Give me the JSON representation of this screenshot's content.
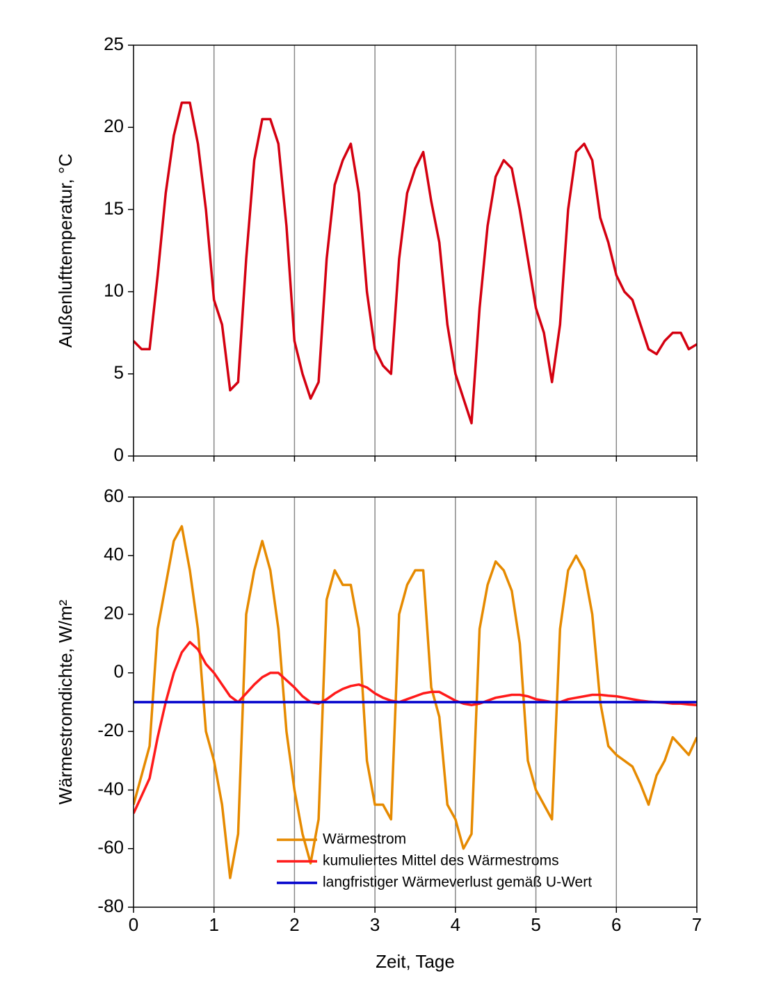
{
  "chart_data": [
    {
      "type": "line",
      "y_label": "Außenlufttemperatur, °C",
      "x": [
        0,
        0.1,
        0.2,
        0.3,
        0.4,
        0.5,
        0.6,
        0.7,
        0.8,
        0.9,
        1,
        1.1,
        1.2,
        1.3,
        1.4,
        1.5,
        1.6,
        1.7,
        1.8,
        1.9,
        2,
        2.1,
        2.2,
        2.3,
        2.4,
        2.5,
        2.6,
        2.7,
        2.8,
        2.9,
        3,
        3.1,
        3.2,
        3.3,
        3.4,
        3.5,
        3.6,
        3.7,
        3.8,
        3.9,
        4,
        4.1,
        4.2,
        4.3,
        4.4,
        4.5,
        4.6,
        4.7,
        4.8,
        4.9,
        5,
        5.1,
        5.2,
        5.3,
        5.4,
        5.5,
        5.6,
        5.7,
        5.8,
        5.9,
        6,
        6.1,
        6.2,
        6.3,
        6.4,
        6.5,
        6.6,
        6.7,
        6.8,
        6.9,
        7
      ],
      "series": [
        {
          "name": "Außenlufttemperatur",
          "color": "#d40010",
          "values": [
            7,
            6.5,
            6.5,
            11,
            16,
            19.5,
            21.5,
            21.5,
            19,
            15,
            9.5,
            8,
            4,
            4.5,
            12,
            18,
            20.5,
            20.5,
            19,
            14,
            7,
            5,
            3.5,
            4.5,
            12,
            16.5,
            18,
            19,
            16,
            10,
            6.5,
            5.5,
            5,
            12,
            16,
            17.5,
            18.5,
            15.5,
            13,
            8,
            5,
            3.5,
            2,
            9,
            14,
            17,
            18,
            17.5,
            15,
            12,
            9,
            7.5,
            4.5,
            8,
            15,
            18.5,
            19,
            18,
            14.5,
            13,
            11,
            10,
            9.5,
            8,
            6.5,
            6.2,
            7,
            7.5,
            7.5,
            6.5,
            6.8
          ]
        }
      ],
      "xlim": [
        0,
        7
      ],
      "xticks": [
        0,
        1,
        2,
        3,
        4,
        5,
        6,
        7
      ],
      "ylim": [
        0,
        25
      ],
      "yticks": [
        0,
        5,
        10,
        15,
        20,
        25
      ],
      "grid": "x"
    },
    {
      "type": "line",
      "x_label": "Zeit, Tage",
      "y_label": "Wärmestromdichte, W/m²",
      "x": [
        0,
        0.1,
        0.2,
        0.3,
        0.4,
        0.5,
        0.6,
        0.7,
        0.8,
        0.9,
        1,
        1.1,
        1.2,
        1.3,
        1.4,
        1.5,
        1.6,
        1.7,
        1.8,
        1.9,
        2,
        2.1,
        2.2,
        2.3,
        2.4,
        2.5,
        2.6,
        2.7,
        2.8,
        2.9,
        3,
        3.1,
        3.2,
        3.3,
        3.4,
        3.5,
        3.6,
        3.7,
        3.8,
        3.9,
        4,
        4.1,
        4.2,
        4.3,
        4.4,
        4.5,
        4.6,
        4.7,
        4.8,
        4.9,
        5,
        5.1,
        5.2,
        5.3,
        5.4,
        5.5,
        5.6,
        5.7,
        5.8,
        5.9,
        6,
        6.1,
        6.2,
        6.3,
        6.4,
        6.5,
        6.6,
        6.7,
        6.8,
        6.9,
        7
      ],
      "series": [
        {
          "name": "Wärmestrom",
          "color": "#e68a00",
          "values": [
            -45,
            -35,
            -25,
            15,
            30,
            45,
            50,
            35,
            15,
            -20,
            -30,
            -45,
            -70,
            -55,
            20,
            35,
            45,
            35,
            15,
            -20,
            -40,
            -55,
            -65,
            -50,
            25,
            35,
            30,
            30,
            15,
            -30,
            -45,
            -45,
            -50,
            20,
            30,
            35,
            35,
            -5,
            -15,
            -45,
            -50,
            -60,
            -55,
            15,
            30,
            38,
            35,
            28,
            10,
            -30,
            -40,
            -45,
            -50,
            15,
            35,
            40,
            35,
            20,
            -10,
            -25,
            -28,
            -30,
            -32,
            -38,
            -45,
            -35,
            -30,
            -22,
            -25,
            -28,
            -22
          ]
        },
        {
          "name": "kumuliertes Mittel des Wärmestroms",
          "color": "#ff1a1a",
          "values": [
            -48,
            -42,
            -36,
            -22,
            -10,
            0,
            7,
            10.5,
            8,
            3,
            0,
            -4,
            -8,
            -10,
            -7,
            -4,
            -1.5,
            0,
            0,
            -2.5,
            -5,
            -8,
            -10,
            -10.5,
            -9,
            -7,
            -5.5,
            -4.5,
            -4,
            -5,
            -7,
            -8.5,
            -9.5,
            -10,
            -9,
            -8,
            -7,
            -6.5,
            -6.5,
            -8,
            -9.5,
            -10.5,
            -11,
            -10.5,
            -9.5,
            -8.5,
            -8,
            -7.5,
            -7.5,
            -8,
            -9,
            -9.5,
            -10,
            -10,
            -9,
            -8.5,
            -8,
            -7.5,
            -7.5,
            -7.8,
            -8,
            -8.5,
            -9,
            -9.5,
            -9.8,
            -10,
            -10.2,
            -10.5,
            -10.5,
            -10.8,
            -11
          ]
        },
        {
          "name": "langfristiger Wärmeverlust gemäß U-Wert",
          "color": "#0000cc",
          "x": [
            0,
            7
          ],
          "values": [
            -10,
            -10
          ]
        }
      ],
      "xlim": [
        0,
        7
      ],
      "xticks": [
        0,
        1,
        2,
        3,
        4,
        5,
        6,
        7
      ],
      "ylim": [
        -80,
        60
      ],
      "yticks": [
        -80,
        -60,
        -40,
        -20,
        0,
        20,
        40,
        60
      ],
      "grid": "x",
      "legend": "lower center"
    }
  ]
}
